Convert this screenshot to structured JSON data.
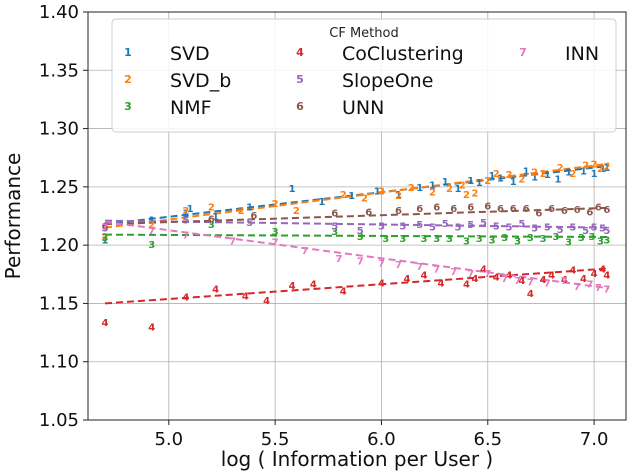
{
  "chart_data": {
    "type": "scatter",
    "xlabel": "log ( Information per User )",
    "ylabel": "Performance",
    "xlim": [
      4.62,
      7.15
    ],
    "ylim": [
      1.05,
      1.4
    ],
    "xticks": [
      5.0,
      5.5,
      6.0,
      6.5,
      7.0
    ],
    "xtick_labels": [
      "5.0",
      "5.5",
      "6.0",
      "6.5",
      "7.0"
    ],
    "yticks": [
      1.05,
      1.1,
      1.15,
      1.2,
      1.25,
      1.3,
      1.35,
      1.4
    ],
    "ytick_labels": [
      "1.05",
      "1.10",
      "1.15",
      "1.20",
      "1.25",
      "1.30",
      "1.35",
      "1.40"
    ],
    "legend": {
      "title": "CF Method",
      "position": "top-center",
      "columns": 3
    },
    "series": [
      {
        "name": "SVD",
        "marker": "1",
        "color": "#1f77b4",
        "trend": [
          [
            4.7,
            1.218
          ],
          [
            7.07,
            1.268
          ]
        ],
        "points": [
          [
            4.7,
            1.205
          ],
          [
            4.92,
            1.222
          ],
          [
            5.08,
            1.228
          ],
          [
            5.1,
            1.232
          ],
          [
            5.22,
            1.225
          ],
          [
            5.38,
            1.233
          ],
          [
            5.58,
            1.249
          ],
          [
            5.72,
            1.238
          ],
          [
            5.86,
            1.243
          ],
          [
            5.98,
            1.247
          ],
          [
            6.08,
            1.244
          ],
          [
            6.18,
            1.25
          ],
          [
            6.24,
            1.252
          ],
          [
            6.3,
            1.255
          ],
          [
            6.36,
            1.249
          ],
          [
            6.42,
            1.256
          ],
          [
            6.46,
            1.254
          ],
          [
            6.52,
            1.26
          ],
          [
            6.56,
            1.258
          ],
          [
            6.62,
            1.255
          ],
          [
            6.68,
            1.264
          ],
          [
            6.72,
            1.259
          ],
          [
            6.78,
            1.261
          ],
          [
            6.83,
            1.257
          ],
          [
            6.88,
            1.263
          ],
          [
            6.95,
            1.264
          ],
          [
            7.0,
            1.262
          ],
          [
            7.04,
            1.266
          ],
          [
            7.06,
            1.267
          ]
        ]
      },
      {
        "name": "SVD_b",
        "marker": "2",
        "color": "#ff7f0e",
        "trend": [
          [
            4.7,
            1.215
          ],
          [
            7.07,
            1.27
          ]
        ],
        "points": [
          [
            4.7,
            1.208
          ],
          [
            4.92,
            1.218
          ],
          [
            5.08,
            1.23
          ],
          [
            5.2,
            1.233
          ],
          [
            5.34,
            1.23
          ],
          [
            5.5,
            1.236
          ],
          [
            5.6,
            1.23
          ],
          [
            5.82,
            1.244
          ],
          [
            5.92,
            1.241
          ],
          [
            6.0,
            1.247
          ],
          [
            6.08,
            1.243
          ],
          [
            6.14,
            1.25
          ],
          [
            6.24,
            1.246
          ],
          [
            6.32,
            1.249
          ],
          [
            6.38,
            1.252
          ],
          [
            6.4,
            1.244
          ],
          [
            6.44,
            1.245
          ],
          [
            6.5,
            1.256
          ],
          [
            6.54,
            1.262
          ],
          [
            6.6,
            1.261
          ],
          [
            6.66,
            1.257
          ],
          [
            6.72,
            1.263
          ],
          [
            6.76,
            1.262
          ],
          [
            6.84,
            1.267
          ],
          [
            6.9,
            1.262
          ],
          [
            6.96,
            1.269
          ],
          [
            7.0,
            1.27
          ],
          [
            7.03,
            1.266
          ],
          [
            7.06,
            1.268
          ]
        ]
      },
      {
        "name": "NMF",
        "marker": "3",
        "color": "#2ca02c",
        "trend": [
          [
            4.7,
            1.209
          ],
          [
            7.07,
            1.207
          ]
        ],
        "points": [
          [
            4.7,
            1.207
          ],
          [
            4.92,
            1.201
          ],
          [
            5.2,
            1.218
          ],
          [
            5.5,
            1.212
          ],
          [
            5.78,
            1.212
          ],
          [
            5.9,
            1.208
          ],
          [
            6.02,
            1.206
          ],
          [
            6.1,
            1.206
          ],
          [
            6.2,
            1.206
          ],
          [
            6.26,
            1.206
          ],
          [
            6.32,
            1.206
          ],
          [
            6.4,
            1.204
          ],
          [
            6.46,
            1.206
          ],
          [
            6.52,
            1.205
          ],
          [
            6.58,
            1.207
          ],
          [
            6.64,
            1.204
          ],
          [
            6.7,
            1.207
          ],
          [
            6.76,
            1.206
          ],
          [
            6.82,
            1.208
          ],
          [
            6.88,
            1.203
          ],
          [
            6.94,
            1.207
          ],
          [
            6.99,
            1.208
          ],
          [
            7.03,
            1.204
          ],
          [
            7.06,
            1.205
          ]
        ]
      },
      {
        "name": "CoClustering",
        "marker": "4",
        "color": "#d62728",
        "trend": [
          [
            4.7,
            1.15
          ],
          [
            7.07,
            1.18
          ]
        ],
        "points": [
          [
            4.7,
            1.134
          ],
          [
            4.92,
            1.13
          ],
          [
            5.08,
            1.156
          ],
          [
            5.22,
            1.163
          ],
          [
            5.36,
            1.157
          ],
          [
            5.46,
            1.153
          ],
          [
            5.58,
            1.166
          ],
          [
            5.68,
            1.167
          ],
          [
            5.82,
            1.161
          ],
          [
            6.0,
            1.168
          ],
          [
            6.12,
            1.172
          ],
          [
            6.2,
            1.175
          ],
          [
            6.28,
            1.168
          ],
          [
            6.4,
            1.167
          ],
          [
            6.44,
            1.172
          ],
          [
            6.48,
            1.18
          ],
          [
            6.54,
            1.173
          ],
          [
            6.6,
            1.175
          ],
          [
            6.66,
            1.17
          ],
          [
            6.7,
            1.159
          ],
          [
            6.76,
            1.171
          ],
          [
            6.8,
            1.175
          ],
          [
            6.86,
            1.171
          ],
          [
            6.9,
            1.179
          ],
          [
            6.95,
            1.172
          ],
          [
            7.0,
            1.176
          ],
          [
            7.04,
            1.18
          ],
          [
            7.06,
            1.175
          ]
        ]
      },
      {
        "name": "SlopeOne",
        "marker": "5",
        "color": "#9467bd",
        "trend": [
          [
            4.7,
            1.221
          ],
          [
            7.07,
            1.215
          ]
        ],
        "points": [
          [
            4.7,
            1.215
          ],
          [
            5.08,
            1.222
          ],
          [
            5.38,
            1.22
          ],
          [
            5.78,
            1.217
          ],
          [
            5.9,
            1.213
          ],
          [
            6.0,
            1.217
          ],
          [
            6.1,
            1.217
          ],
          [
            6.18,
            1.218
          ],
          [
            6.24,
            1.216
          ],
          [
            6.3,
            1.219
          ],
          [
            6.36,
            1.216
          ],
          [
            6.42,
            1.218
          ],
          [
            6.48,
            1.22
          ],
          [
            6.54,
            1.217
          ],
          [
            6.6,
            1.216
          ],
          [
            6.66,
            1.219
          ],
          [
            6.72,
            1.215
          ],
          [
            6.78,
            1.216
          ],
          [
            6.84,
            1.214
          ],
          [
            6.9,
            1.216
          ],
          [
            6.96,
            1.213
          ],
          [
            7.0,
            1.216
          ],
          [
            7.04,
            1.215
          ],
          [
            7.06,
            1.213
          ]
        ]
      },
      {
        "name": "UNN",
        "marker": "6",
        "color": "#8c564b",
        "trend": [
          [
            4.7,
            1.218
          ],
          [
            7.07,
            1.232
          ]
        ],
        "points": [
          [
            4.7,
            1.217
          ],
          [
            5.2,
            1.223
          ],
          [
            5.4,
            1.226
          ],
          [
            5.78,
            1.228
          ],
          [
            5.94,
            1.229
          ],
          [
            6.08,
            1.23
          ],
          [
            6.18,
            1.232
          ],
          [
            6.26,
            1.233
          ],
          [
            6.34,
            1.232
          ],
          [
            6.42,
            1.233
          ],
          [
            6.5,
            1.234
          ],
          [
            6.56,
            1.232
          ],
          [
            6.62,
            1.232
          ],
          [
            6.68,
            1.232
          ],
          [
            6.74,
            1.228
          ],
          [
            6.8,
            1.232
          ],
          [
            6.86,
            1.23
          ],
          [
            6.92,
            1.231
          ],
          [
            6.98,
            1.229
          ],
          [
            7.02,
            1.233
          ],
          [
            7.06,
            1.231
          ]
        ]
      },
      {
        "name": "INN",
        "marker": "7",
        "color": "#e377c2",
        "trend": [
          [
            4.7,
            1.22
          ],
          [
            7.07,
            1.163
          ]
        ],
        "points": [
          [
            4.7,
            1.216
          ],
          [
            4.92,
            1.213
          ],
          [
            5.08,
            1.209
          ],
          [
            5.3,
            1.204
          ],
          [
            5.5,
            1.203
          ],
          [
            5.64,
            1.196
          ],
          [
            5.8,
            1.189
          ],
          [
            5.9,
            1.187
          ],
          [
            6.0,
            1.185
          ],
          [
            6.08,
            1.184
          ],
          [
            6.18,
            1.182
          ],
          [
            6.26,
            1.18
          ],
          [
            6.34,
            1.178
          ],
          [
            6.42,
            1.176
          ],
          [
            6.5,
            1.176
          ],
          [
            6.58,
            1.172
          ],
          [
            6.64,
            1.17
          ],
          [
            6.7,
            1.169
          ],
          [
            6.78,
            1.168
          ],
          [
            6.86,
            1.17
          ],
          [
            6.92,
            1.165
          ],
          [
            6.98,
            1.167
          ],
          [
            7.02,
            1.164
          ],
          [
            7.06,
            1.163
          ]
        ]
      }
    ]
  }
}
